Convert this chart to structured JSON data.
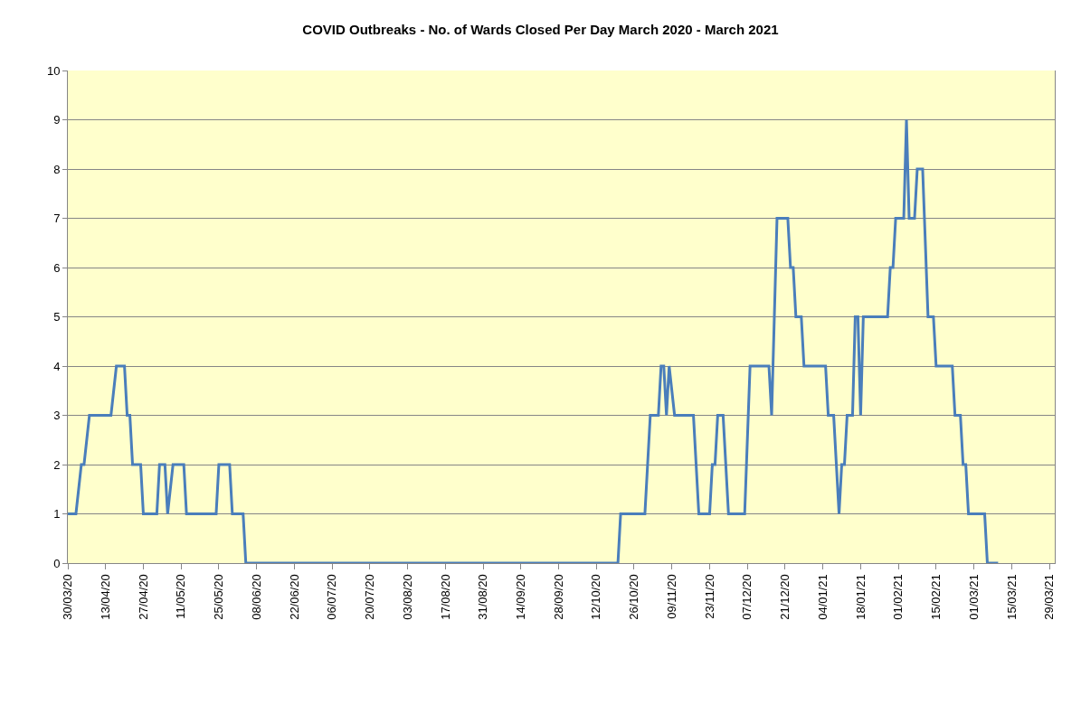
{
  "chart_data": {
    "type": "line",
    "title": "COVID Outbreaks - No. of Wards Closed Per Day March 2020 - March 2021",
    "x": [
      "2020-03-30",
      "2020-04-02",
      "2020-04-04",
      "2020-04-05",
      "2020-04-07",
      "2020-04-15",
      "2020-04-17",
      "2020-04-20",
      "2020-04-21",
      "2020-04-22",
      "2020-04-23",
      "2020-04-26",
      "2020-04-27",
      "2020-05-02",
      "2020-05-03",
      "2020-05-05",
      "2020-05-06",
      "2020-05-08",
      "2020-05-12",
      "2020-05-13",
      "2020-05-24",
      "2020-05-25",
      "2020-05-29",
      "2020-05-30",
      "2020-06-03",
      "2020-06-04",
      "2020-10-20",
      "2020-10-21",
      "2020-10-30",
      "2020-11-01",
      "2020-11-04",
      "2020-11-05",
      "2020-11-06",
      "2020-11-07",
      "2020-11-08",
      "2020-11-10",
      "2020-11-17",
      "2020-11-19",
      "2020-11-23",
      "2020-11-24",
      "2020-11-25",
      "2020-11-26",
      "2020-11-28",
      "2020-11-30",
      "2020-12-06",
      "2020-12-08",
      "2020-12-15",
      "2020-12-16",
      "2020-12-18",
      "2020-12-22",
      "2020-12-23",
      "2020-12-24",
      "2020-12-25",
      "2020-12-27",
      "2020-12-28",
      "2021-01-05",
      "2021-01-06",
      "2021-01-08",
      "2021-01-10",
      "2021-01-11",
      "2021-01-12",
      "2021-01-13",
      "2021-01-15",
      "2021-01-16",
      "2021-01-17",
      "2021-01-18",
      "2021-01-19",
      "2021-01-28",
      "2021-01-29",
      "2021-01-30",
      "2021-01-31",
      "2021-02-03",
      "2021-02-04",
      "2021-02-05",
      "2021-02-07",
      "2021-02-08",
      "2021-02-10",
      "2021-02-12",
      "2021-02-14",
      "2021-02-15",
      "2021-02-21",
      "2021-02-22",
      "2021-02-24",
      "2021-02-25",
      "2021-02-26",
      "2021-02-27",
      "2021-03-05",
      "2021-03-06",
      "2021-03-10"
    ],
    "series": [
      {
        "color": "#4a7ebb",
        "values": [
          1,
          1,
          2,
          2,
          3,
          3,
          4,
          4,
          3,
          3,
          2,
          2,
          1,
          1,
          2,
          2,
          1,
          2,
          2,
          1,
          1,
          2,
          2,
          1,
          1,
          0,
          0,
          1,
          1,
          3,
          3,
          4,
          4,
          3,
          4,
          3,
          3,
          1,
          1,
          2,
          2,
          3,
          3,
          1,
          1,
          4,
          4,
          3,
          7,
          7,
          6,
          6,
          5,
          5,
          4,
          4,
          3,
          3,
          1,
          2,
          2,
          3,
          3,
          5,
          5,
          3,
          5,
          5,
          6,
          6,
          7,
          7,
          9,
          7,
          7,
          8,
          8,
          5,
          5,
          4,
          4,
          3,
          3,
          2,
          2,
          1,
          1,
          0,
          0
        ]
      }
    ],
    "xlim": [
      "2020-03-30",
      "2021-03-31"
    ],
    "xticks": [
      {
        "value": "2020-03-30",
        "label": "30/03/20"
      },
      {
        "value": "2020-04-13",
        "label": "13/04/20"
      },
      {
        "value": "2020-04-27",
        "label": "27/04/20"
      },
      {
        "value": "2020-05-11",
        "label": "11/05/20"
      },
      {
        "value": "2020-05-25",
        "label": "25/05/20"
      },
      {
        "value": "2020-06-08",
        "label": "08/06/20"
      },
      {
        "value": "2020-06-22",
        "label": "22/06/20"
      },
      {
        "value": "2020-07-06",
        "label": "06/07/20"
      },
      {
        "value": "2020-07-20",
        "label": "20/07/20"
      },
      {
        "value": "2020-08-03",
        "label": "03/08/20"
      },
      {
        "value": "2020-08-17",
        "label": "17/08/20"
      },
      {
        "value": "2020-08-31",
        "label": "31/08/20"
      },
      {
        "value": "2020-09-14",
        "label": "14/09/20"
      },
      {
        "value": "2020-09-28",
        "label": "28/09/20"
      },
      {
        "value": "2020-10-12",
        "label": "12/10/20"
      },
      {
        "value": "2020-10-26",
        "label": "26/10/20"
      },
      {
        "value": "2020-11-09",
        "label": "09/11/20"
      },
      {
        "value": "2020-11-23",
        "label": "23/11/20"
      },
      {
        "value": "2020-12-07",
        "label": "07/12/20"
      },
      {
        "value": "2020-12-21",
        "label": "21/12/20"
      },
      {
        "value": "2021-01-04",
        "label": "04/01/21"
      },
      {
        "value": "2021-01-18",
        "label": "18/01/21"
      },
      {
        "value": "2021-02-01",
        "label": "01/02/21"
      },
      {
        "value": "2021-02-15",
        "label": "15/02/21"
      },
      {
        "value": "2021-03-01",
        "label": "01/03/21"
      },
      {
        "value": "2021-03-15",
        "label": "15/03/21"
      },
      {
        "value": "2021-03-29",
        "label": "29/03/21"
      }
    ],
    "ylim": [
      0,
      10
    ],
    "yticks": [
      0,
      1,
      2,
      3,
      4,
      5,
      6,
      7,
      8,
      9,
      10
    ],
    "grid": "y",
    "marker": "none",
    "line_style": "solid"
  }
}
